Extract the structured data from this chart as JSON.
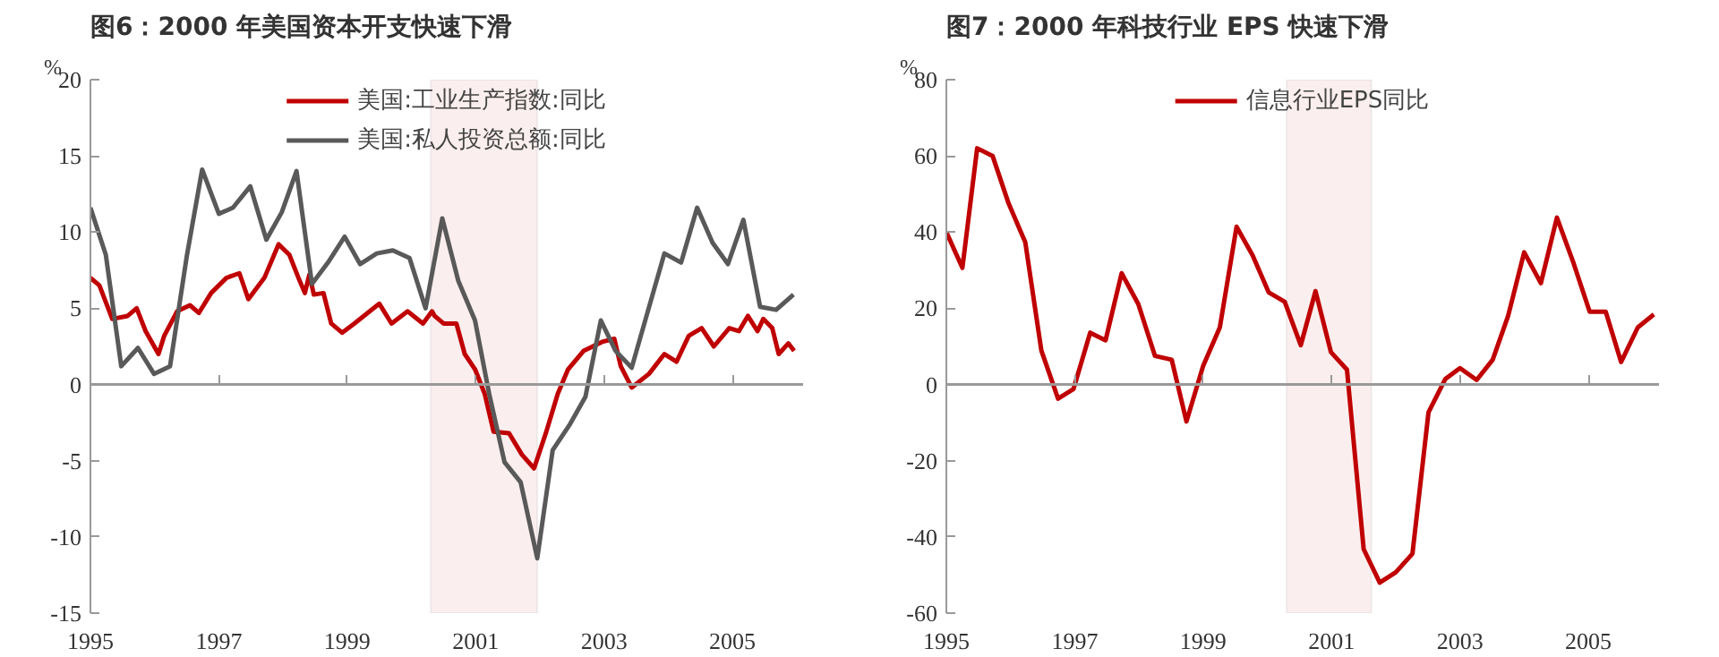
{
  "chart_data": [
    {
      "type": "line",
      "title": "图6：2000 年美国资本开支快速下滑",
      "ylabel": "%",
      "legend": "top",
      "grid": false,
      "line_style": "solid",
      "xlim": [
        1995,
        2006.1
      ],
      "xticks": [
        1995,
        1997,
        1999,
        2001,
        2003,
        2005
      ],
      "ylim": [
        -15,
        20
      ],
      "yticks": [
        -15,
        -10,
        -5,
        0,
        5,
        10,
        15,
        20
      ],
      "bands": [
        {
          "axis": "x",
          "from": 2000.3,
          "to": 2001.96,
          "color": "#fbeeee"
        }
      ],
      "ref_lines": [
        {
          "axis": "y",
          "value": 0,
          "color": "#999999"
        }
      ],
      "series": [
        {
          "name": "美国:工业生产指数:同比",
          "color": "#c00000",
          "x": [
            1995.0,
            1995.14,
            1995.34,
            1995.58,
            1995.72,
            1995.86,
            1996.06,
            1996.15,
            1996.35,
            1996.55,
            1996.69,
            1996.88,
            1997.12,
            1997.32,
            1997.46,
            1997.71,
            1997.93,
            1998.1,
            1998.24,
            1998.34,
            1998.41,
            1998.48,
            1998.63,
            1998.75,
            1998.92,
            1999.11,
            1999.35,
            1999.5,
            1999.69,
            1999.94,
            2000.18,
            2000.32,
            2000.36,
            2000.5,
            2000.7,
            2000.83,
            2000.99,
            2001.14,
            2001.28,
            2001.52,
            2001.72,
            2001.91,
            2002.1,
            2002.28,
            2002.44,
            2002.68,
            2002.97,
            2003.16,
            2003.26,
            2003.43,
            2003.7,
            2003.94,
            2004.13,
            2004.32,
            2004.52,
            2004.71,
            2004.95,
            2005.1,
            2005.24,
            2005.39,
            2005.48,
            2005.62,
            2005.72,
            2005.87,
            2005.96
          ],
          "values": [
            7.0,
            6.5,
            4.3,
            4.5,
            5.0,
            3.5,
            2.0,
            3.2,
            4.8,
            5.2,
            4.7,
            6.0,
            7.0,
            7.3,
            5.6,
            7.0,
            9.2,
            8.5,
            7.0,
            6.0,
            7.2,
            5.9,
            6.0,
            4.0,
            3.4,
            4.0,
            4.8,
            5.3,
            4.0,
            4.8,
            4.0,
            4.8,
            4.5,
            4.0,
            4.0,
            2.0,
            1.0,
            -0.6,
            -3.1,
            -3.2,
            -4.6,
            -5.5,
            -3.1,
            -0.6,
            1.0,
            2.2,
            2.8,
            3.0,
            1.2,
            -0.2,
            0.7,
            2.0,
            1.5,
            3.2,
            3.7,
            2.5,
            3.7,
            3.5,
            4.5,
            3.5,
            4.3,
            3.7,
            2.0,
            2.7,
            2.2
          ]
        },
        {
          "name": "美国:私人投资总额:同比",
          "color": "#595959",
          "x": [
            1995.0,
            1995.24,
            1995.48,
            1995.74,
            1995.99,
            1996.24,
            1996.5,
            1996.74,
            1997.0,
            1997.22,
            1997.49,
            1997.74,
            1997.98,
            1998.21,
            1998.45,
            1998.7,
            1998.96,
            1999.2,
            1999.46,
            1999.71,
            1999.97,
            2000.22,
            2000.48,
            2000.73,
            2000.99,
            2001.21,
            2001.45,
            2001.7,
            2001.96,
            2002.2,
            2002.47,
            2002.71,
            2002.95,
            2003.18,
            2003.43,
            2003.94,
            2004.2,
            2004.45,
            2004.69,
            2004.93,
            2005.17,
            2005.43,
            2005.68,
            2005.95
          ],
          "values": [
            11.6,
            8.5,
            1.2,
            2.4,
            0.7,
            1.2,
            8.4,
            14.1,
            11.2,
            11.6,
            13.0,
            9.5,
            11.3,
            14.0,
            6.6,
            8.0,
            9.7,
            7.9,
            8.6,
            8.8,
            8.3,
            5.0,
            10.9,
            6.8,
            4.2,
            -0.6,
            -5.1,
            -6.4,
            -11.4,
            -4.3,
            -2.6,
            -0.8,
            4.2,
            2.2,
            1.1,
            8.6,
            8.0,
            11.6,
            9.3,
            7.9,
            10.8,
            5.1,
            4.9,
            5.9
          ]
        }
      ]
    },
    {
      "type": "line",
      "title": "图7：2000 年科技行业 EPS 快速下滑",
      "ylabel": "%",
      "legend": "top",
      "grid": false,
      "line_style": "solid",
      "xlim": [
        1995,
        2006.1
      ],
      "xticks": [
        1995,
        1997,
        1999,
        2001,
        2003,
        2005
      ],
      "ylim": [
        -60,
        80
      ],
      "yticks": [
        -60,
        -40,
        -20,
        0,
        20,
        40,
        60,
        80
      ],
      "bands": [
        {
          "axis": "x",
          "from": 2000.3,
          "to": 2001.62,
          "color": "#fbeeee"
        }
      ],
      "ref_lines": [
        {
          "axis": "y",
          "value": 0,
          "color": "#999999"
        }
      ],
      "series": [
        {
          "name": "信息行业EPS同比",
          "color": "#c00000",
          "x": [
            1995.0,
            1995.25,
            1995.48,
            1995.72,
            1995.97,
            1996.23,
            1996.48,
            1996.74,
            1996.98,
            1997.24,
            1997.48,
            1997.73,
            1997.99,
            1998.25,
            1998.51,
            1998.74,
            1999.0,
            1999.26,
            1999.52,
            1999.77,
            2000.02,
            2000.27,
            2000.52,
            2000.75,
            2000.99,
            2001.24,
            2001.5,
            2001.75,
            2002.0,
            2002.26,
            2002.51,
            2002.77,
            2003.0,
            2003.26,
            2003.51,
            2003.75,
            2004.0,
            2004.26,
            2004.51,
            2004.77,
            2005.02,
            2005.27,
            2005.51,
            2005.77,
            2006.02
          ],
          "values": [
            40,
            30.6,
            62,
            60,
            47.5,
            37.3,
            8.9,
            -3.7,
            -1.2,
            13.6,
            11.6,
            29.2,
            21.1,
            7.5,
            6.5,
            -9.7,
            4.9,
            15,
            41.4,
            33.9,
            24.2,
            21.7,
            10.3,
            24.5,
            8.5,
            3.9,
            -43.2,
            -52,
            -49.3,
            -44.4,
            -7.3,
            1.4,
            4.3,
            1.2,
            6.5,
            18,
            34.7,
            26.6,
            43.8,
            31.8,
            19.1,
            19.1,
            5.9,
            15,
            18.4
          ]
        }
      ]
    }
  ]
}
